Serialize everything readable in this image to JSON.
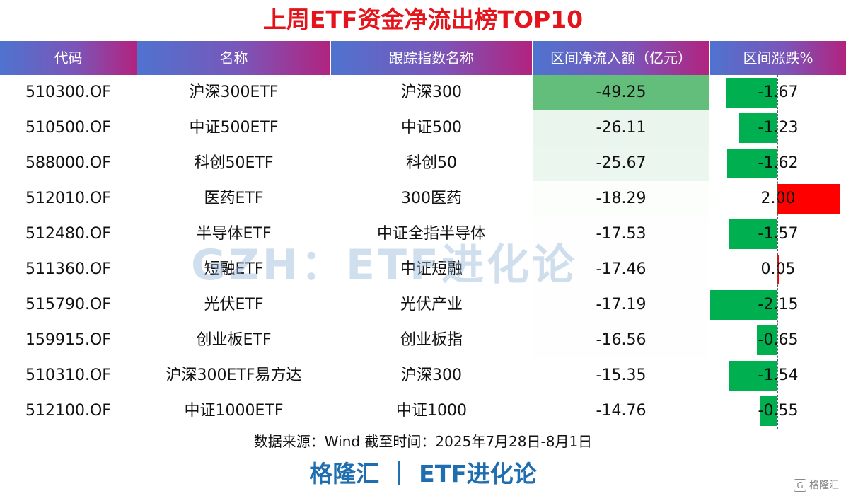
{
  "title": "上周ETF资金净流出榜TOP10",
  "headers": {
    "code": "代码",
    "name": "名称",
    "index": "跟踪指数名称",
    "flow": "区间净流入额（亿元）",
    "change": "区间涨跌%"
  },
  "watermark": "GZH：ETF进化论",
  "source": "数据来源：Wind 截至时间：2025年7月28日-8月1日",
  "brand": "格隆汇 ｜ ETF进化论",
  "corner_logo": {
    "glyph": "G",
    "text": "格隆汇"
  },
  "colors": {
    "title": "#e3141b",
    "positive": "#ff0000",
    "negative": "#00b050",
    "brand": "#1f6fb0"
  },
  "chart_data": {
    "type": "table",
    "columns": [
      "代码",
      "名称",
      "跟踪指数名称",
      "区间净流入额（亿元）",
      "区间涨跌%"
    ],
    "rows": [
      {
        "code": "510300.OF",
        "name": "沪深300ETF",
        "index": "沪深300",
        "flow": "-49.25",
        "change": "-1.67",
        "flow_value": -49.25,
        "change_value": -1.67
      },
      {
        "code": "510500.OF",
        "name": "中证500ETF",
        "index": "中证500",
        "flow": "-26.11",
        "change": "-1.23",
        "flow_value": -26.11,
        "change_value": -1.23
      },
      {
        "code": "588000.OF",
        "name": "科创50ETF",
        "index": "科创50",
        "flow": "-25.67",
        "change": "-1.62",
        "flow_value": -25.67,
        "change_value": -1.62
      },
      {
        "code": "512010.OF",
        "name": "医药ETF",
        "index": "300医药",
        "flow": "-18.29",
        "change": "2.00",
        "flow_value": -18.29,
        "change_value": 2.0
      },
      {
        "code": "512480.OF",
        "name": "半导体ETF",
        "index": "中证全指半导体",
        "flow": "-17.53",
        "change": "-1.57",
        "flow_value": -17.53,
        "change_value": -1.57
      },
      {
        "code": "511360.OF",
        "name": "短融ETF",
        "index": "中证短融",
        "flow": "-17.46",
        "change": "0.05",
        "flow_value": -17.46,
        "change_value": 0.05
      },
      {
        "code": "515790.OF",
        "name": "光伏ETF",
        "index": "光伏产业",
        "flow": "-17.19",
        "change": "-2.15",
        "flow_value": -17.19,
        "change_value": -2.15
      },
      {
        "code": "159915.OF",
        "name": "创业板ETF",
        "index": "创业板指",
        "flow": "-16.56",
        "change": "-0.65",
        "flow_value": -16.56,
        "change_value": -0.65
      },
      {
        "code": "510310.OF",
        "name": "沪深300ETF易方达",
        "index": "沪深300",
        "flow": "-15.35",
        "change": "-1.54",
        "flow_value": -15.35,
        "change_value": -1.54
      },
      {
        "code": "512100.OF",
        "name": "中证1000ETF",
        "index": "中证1000",
        "flow": "-14.76",
        "change": "-0.55",
        "flow_value": -14.76,
        "change_value": -0.55
      }
    ]
  }
}
